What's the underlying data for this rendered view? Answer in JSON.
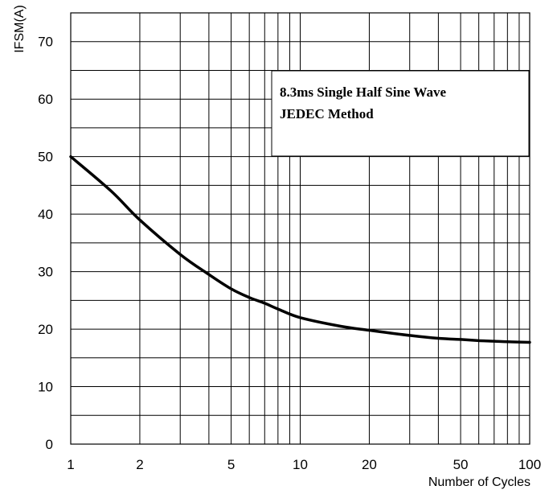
{
  "chart_data": {
    "type": "line",
    "xscale": "log",
    "xlim": [
      1,
      100
    ],
    "ylim": [
      0,
      75
    ],
    "grid": true,
    "xlabel": "Number of Cycles",
    "ylabel": "IFSM(A)",
    "x_ticks": [
      "1",
      "2",
      "5",
      "10",
      "20",
      "50",
      "100"
    ],
    "y_ticks": [
      "0",
      "10",
      "20",
      "30",
      "40",
      "50",
      "60",
      "70"
    ],
    "annotation": {
      "lines": [
        "8.3ms Single Half Sine Wave",
        "JEDEC Method"
      ],
      "placement": "upper-right"
    },
    "series": [
      {
        "x": [
          1,
          1.5,
          2,
          3,
          4,
          5,
          6,
          7,
          8,
          10,
          15,
          20,
          30,
          40,
          50,
          60,
          70,
          80,
          100
        ],
        "values": [
          50,
          44,
          39,
          33,
          29.5,
          27,
          25.5,
          24.5,
          23.5,
          22,
          20.5,
          19.8,
          18.9,
          18.4,
          18.2,
          18,
          17.9,
          17.8,
          17.7
        ]
      }
    ],
    "color": "#000000"
  }
}
